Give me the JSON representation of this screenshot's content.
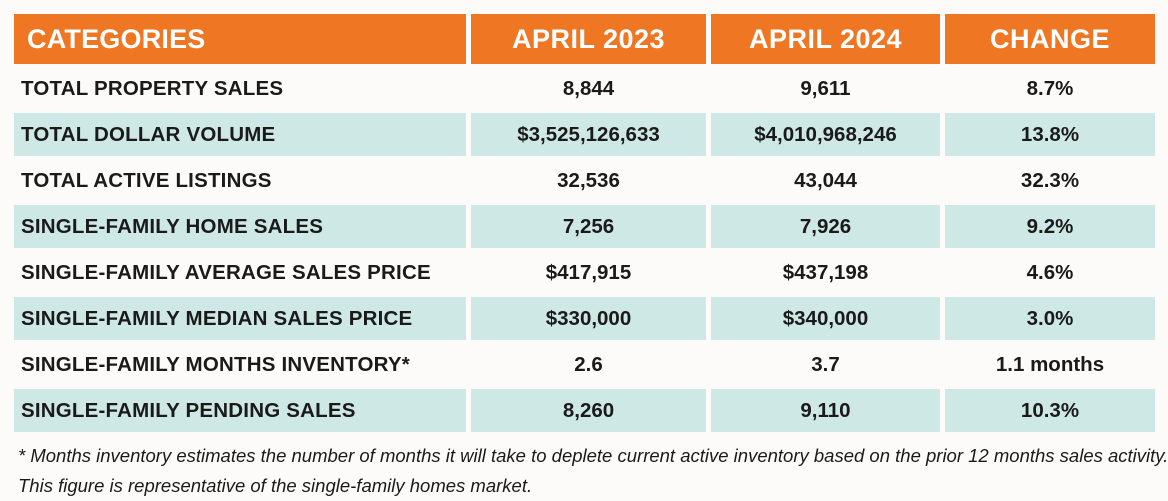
{
  "chart_data": {
    "type": "table",
    "columns": [
      "CATEGORIES",
      "APRIL 2023",
      "APRIL 2024",
      "CHANGE"
    ],
    "rows": [
      [
        "TOTAL PROPERTY SALES",
        "8,844",
        "9,611",
        "8.7%"
      ],
      [
        "TOTAL DOLLAR VOLUME",
        "$3,525,126,633",
        "$4,010,968,246",
        "13.8%"
      ],
      [
        "TOTAL ACTIVE LISTINGS",
        "32,536",
        "43,044",
        "32.3%"
      ],
      [
        "SINGLE-FAMILY HOME SALES",
        "7,256",
        "7,926",
        "9.2%"
      ],
      [
        "SINGLE-FAMILY AVERAGE SALES PRICE",
        "$417,915",
        "$437,198",
        "4.6%"
      ],
      [
        "SINGLE-FAMILY MEDIAN SALES PRICE",
        "$330,000",
        "$340,000",
        "3.0%"
      ],
      [
        "SINGLE-FAMILY MONTHS INVENTORY*",
        "2.6",
        "3.7",
        "1.1 months"
      ],
      [
        "SINGLE-FAMILY PENDING SALES",
        "8,260",
        "9,110",
        "10.3%"
      ]
    ]
  },
  "footnote": {
    "text": "* Months inventory estimates the number of months it will take to deplete current active inventory based on the prior 12 months sales activity. This figure is representative of the single-family homes market."
  },
  "colors": {
    "header_bg": "#EF7623",
    "alt_row_bg": "#CEE8E5",
    "header_text": "#FFFFFF",
    "body_text": "#1A1A1A"
  }
}
